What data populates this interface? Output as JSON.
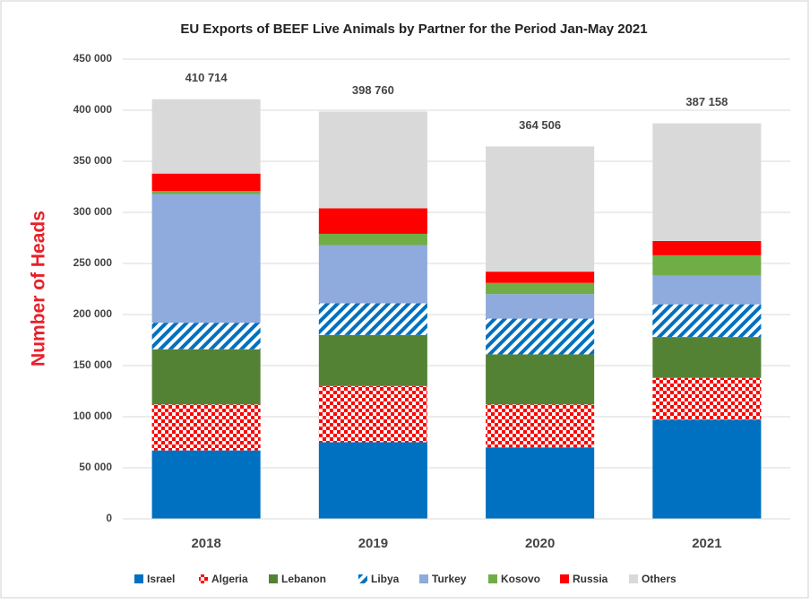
{
  "chart_data": {
    "type": "stacked-bar",
    "title": "EU Exports of BEEF Live Animals by Partner for the Period Jan-May 2021",
    "y_label": "Number of Heads",
    "categories": [
      "2018",
      "2019",
      "2020",
      "2021"
    ],
    "series": [
      {
        "name": "Israel",
        "color": "#0070c0",
        "values": [
          67000,
          75000,
          70000,
          97000
        ]
      },
      {
        "name": "Algeria",
        "color": "#ff0000",
        "pattern": "checker",
        "values": [
          45000,
          55000,
          42000,
          41000
        ]
      },
      {
        "name": "Lebanon",
        "color": "#548235",
        "values": [
          54000,
          50000,
          49000,
          40000
        ]
      },
      {
        "name": "Libya",
        "color": "#0070c0",
        "pattern": "stripes",
        "values": [
          26000,
          31000,
          35000,
          32000
        ]
      },
      {
        "name": "Turkey",
        "color": "#8faadc",
        "values": [
          126000,
          57000,
          24000,
          28000
        ]
      },
      {
        "name": "Kosovo",
        "color": "#70ad47",
        "values": [
          3000,
          11000,
          11000,
          20000
        ]
      },
      {
        "name": "Russia",
        "color": "#ff0000",
        "values": [
          17000,
          25000,
          11000,
          14000
        ]
      },
      {
        "name": "Others",
        "color": "#d9d9d9",
        "values": [
          72714,
          94760,
          122506,
          115158
        ]
      }
    ],
    "totals": {
      "values": [
        410714,
        398760,
        364506,
        387158
      ],
      "value_labels": [
        "410 714",
        "398 760",
        "364 506",
        "387 158"
      ]
    },
    "ylim": [
      0,
      450000
    ],
    "yticks": [
      0,
      {
        "value": 50000,
        "label": "50 000"
      },
      {
        "value": 100000,
        "label": "100 000"
      },
      {
        "value": 150000,
        "label": "150 000"
      },
      {
        "value": 200000,
        "label": "200 000"
      },
      {
        "value": 250000,
        "label": "250 000"
      },
      {
        "value": 300000,
        "label": "300 000"
      },
      {
        "value": 350000,
        "label": "350 000"
      },
      {
        "value": 400000,
        "label": "400 000"
      },
      {
        "value": 450000,
        "label": "450 000"
      }
    ],
    "grid": true
  }
}
